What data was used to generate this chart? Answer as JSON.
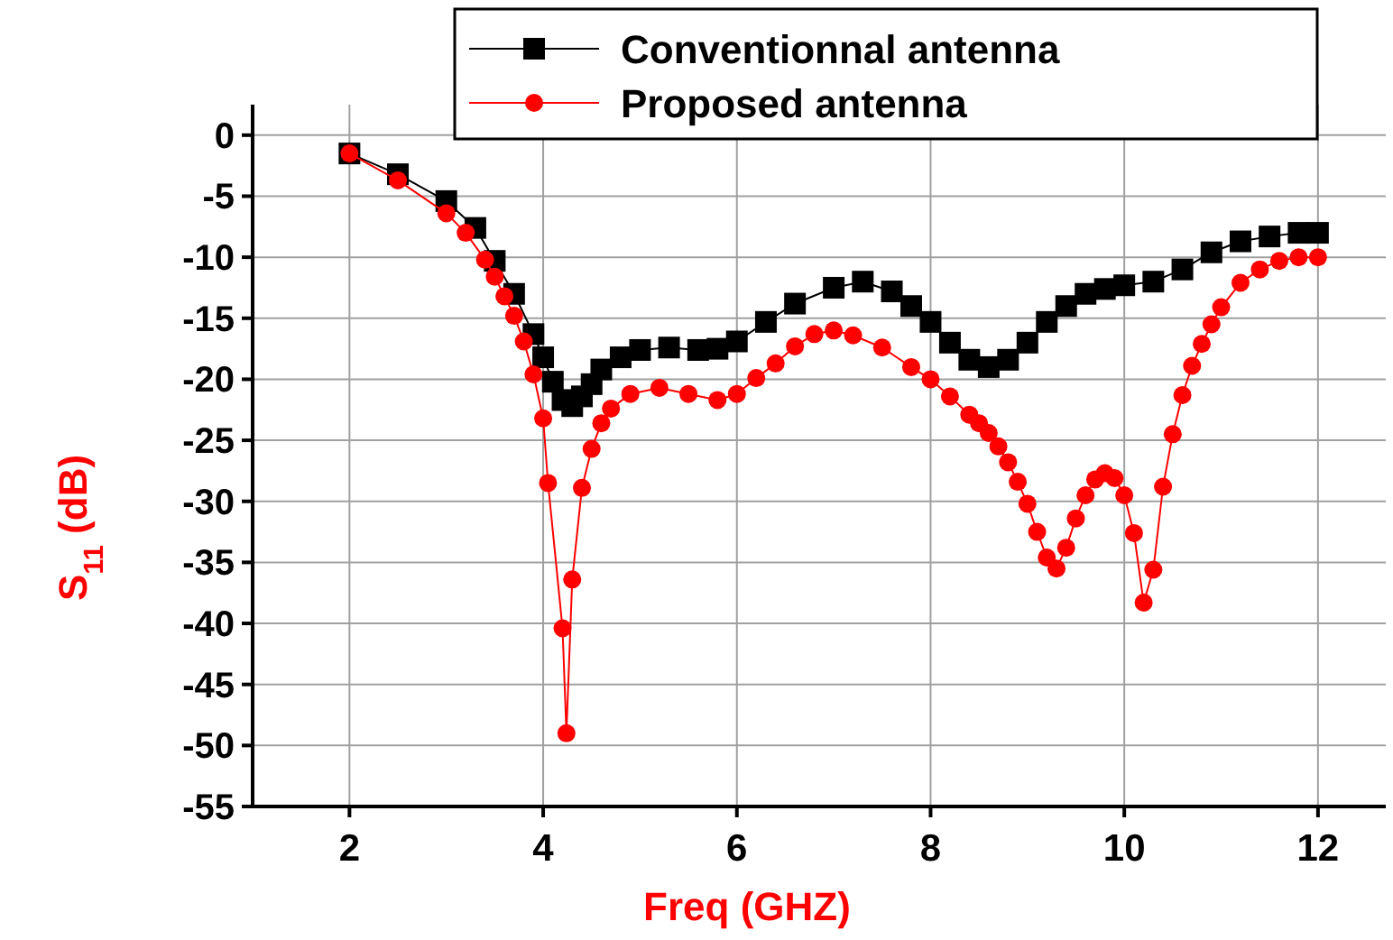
{
  "chart_data": {
    "type": "line",
    "xlabel": "Freq (GHZ)",
    "ylabel": "S$_{11}$ (dB)",
    "xlim": [
      1,
      12.7
    ],
    "xticks": [
      2,
      4,
      6,
      8,
      10,
      12
    ],
    "ylim": [
      -55,
      2.5
    ],
    "yticks": [
      0,
      -5,
      -10,
      -15,
      -20,
      -25,
      -30,
      -35,
      -40,
      -45,
      -50,
      -55
    ],
    "grid": true,
    "legend": "top right",
    "series": [
      {
        "name": "Conventionnal antenna",
        "color": "#000000",
        "marker": "square",
        "x": [
          2,
          2.5,
          3,
          3.3,
          3.5,
          3.7,
          3.9,
          4,
          4.1,
          4.2,
          4.3,
          4.4,
          4.5,
          4.6,
          4.8,
          5,
          5.3,
          5.6,
          5.8,
          6,
          6.3,
          6.6,
          7,
          7.3,
          7.6,
          7.8,
          8,
          8.2,
          8.4,
          8.6,
          8.8,
          9,
          9.2,
          9.4,
          9.6,
          9.8,
          10,
          10.3,
          10.6,
          10.9,
          11.2,
          11.5,
          11.8,
          12
        ],
        "values": [
          -1.5,
          -3.2,
          -5.4,
          -7.6,
          -10.3,
          -13,
          -16.3,
          -18.2,
          -20.2,
          -21.7,
          -22.2,
          -21.4,
          -20.4,
          -19.2,
          -18.2,
          -17.6,
          -17.4,
          -17.6,
          -17.5,
          -16.9,
          -15.3,
          -13.8,
          -12.5,
          -12,
          -12.8,
          -14,
          -15.3,
          -17,
          -18.4,
          -19,
          -18.4,
          -17,
          -15.3,
          -14,
          -13,
          -12.6,
          -12.3,
          -12,
          -11,
          -9.6,
          -8.7,
          -8.3,
          -8,
          -8
        ]
      },
      {
        "name": "Proposed antenna",
        "color": "#ff0000",
        "marker": "circle",
        "x": [
          2,
          2.5,
          3,
          3.2,
          3.4,
          3.5,
          3.6,
          3.7,
          3.8,
          3.9,
          4,
          4.05,
          4.2,
          4.24,
          4.3,
          4.4,
          4.5,
          4.6,
          4.7,
          4.9,
          5.2,
          5.5,
          5.8,
          6,
          6.2,
          6.4,
          6.6,
          6.8,
          7,
          7.2,
          7.5,
          7.8,
          8,
          8.2,
          8.4,
          8.5,
          8.6,
          8.7,
          8.8,
          8.9,
          9,
          9.1,
          9.2,
          9.3,
          9.4,
          9.5,
          9.6,
          9.7,
          9.8,
          9.9,
          10,
          10.1,
          10.2,
          10.3,
          10.4,
          10.5,
          10.6,
          10.7,
          10.8,
          10.9,
          11,
          11.2,
          11.4,
          11.6,
          11.8,
          12
        ],
        "values": [
          -1.5,
          -3.7,
          -6.4,
          -8,
          -10.2,
          -11.6,
          -13.2,
          -14.8,
          -16.9,
          -19.6,
          -23.2,
          -28.5,
          -40.4,
          -49,
          -36.4,
          -28.9,
          -25.7,
          -23.6,
          -22.4,
          -21.2,
          -20.7,
          -21.2,
          -21.7,
          -21.2,
          -19.9,
          -18.7,
          -17.3,
          -16.3,
          -16,
          -16.4,
          -17.4,
          -19,
          -20,
          -21.4,
          -22.9,
          -23.6,
          -24.4,
          -25.5,
          -26.8,
          -28.4,
          -30.2,
          -32.5,
          -34.6,
          -35.5,
          -33.8,
          -31.4,
          -29.5,
          -28.2,
          -27.7,
          -28.1,
          -29.5,
          -32.6,
          -38.3,
          -35.6,
          -28.8,
          -24.5,
          -21.3,
          -18.9,
          -17.1,
          -15.5,
          -14.1,
          -12.1,
          -11,
          -10.3,
          -10,
          -10
        ]
      }
    ]
  }
}
